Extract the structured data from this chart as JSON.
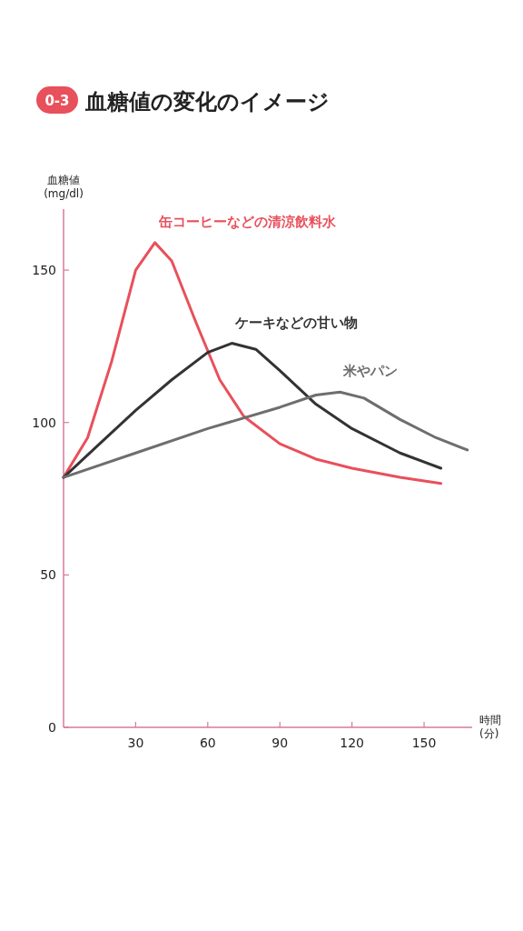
{
  "chart_data": {
    "type": "line",
    "title": "血糖値の変化のイメージ",
    "annotations": [
      "0-3"
    ],
    "ylabel": "血糖値 (mg/dl)",
    "xlabel": "時間 (分)",
    "xlim": [
      0,
      170
    ],
    "ylim": [
      0,
      170
    ],
    "xticks": [
      30,
      60,
      90,
      120,
      150
    ],
    "yticks": [
      0,
      50,
      100,
      150
    ],
    "series": [
      {
        "name": "缶コーヒーなどの清涼飲料水",
        "color": "#e8505b",
        "x": [
          0,
          10,
          20,
          30,
          38,
          45,
          55,
          65,
          75,
          90,
          105,
          120,
          140,
          157
        ],
        "values": [
          82,
          95,
          120,
          150,
          159,
          153,
          133,
          114,
          102,
          93,
          88,
          85,
          82,
          80
        ]
      },
      {
        "name": "ケーキなどの甘い物",
        "color": "#333333",
        "x": [
          0,
          15,
          30,
          45,
          60,
          70,
          80,
          90,
          105,
          120,
          140,
          157
        ],
        "values": [
          82,
          93,
          104,
          114,
          123,
          126,
          124,
          117,
          106,
          98,
          90,
          85
        ]
      },
      {
        "name": "米やパン",
        "color": "#6e6e6e",
        "x": [
          0,
          30,
          60,
          90,
          105,
          115,
          125,
          140,
          155,
          168
        ],
        "values": [
          82,
          90,
          98,
          105,
          109,
          110,
          108,
          101,
          95,
          91
        ]
      }
    ]
  }
}
